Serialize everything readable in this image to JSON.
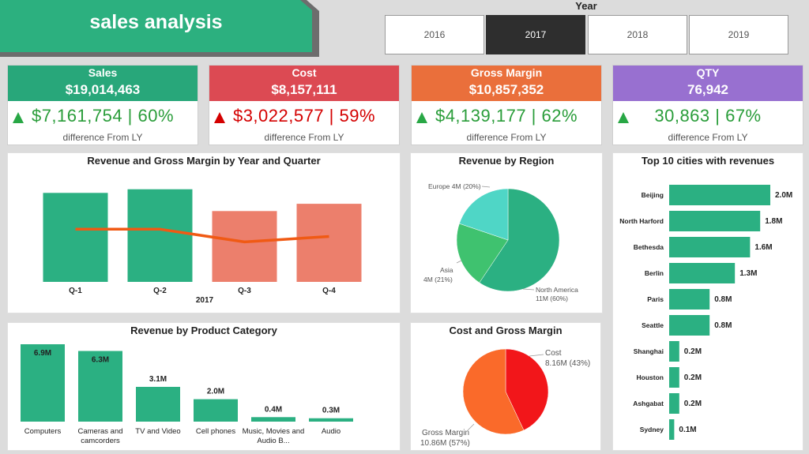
{
  "header": {
    "title": "sales analysis",
    "colors": {
      "banner": "#2cb07f",
      "banner_shadow": "#6d6d6d"
    }
  },
  "year_slicer": {
    "label": "Year",
    "options": [
      "2016",
      "2017",
      "2018",
      "2019"
    ],
    "selected": "2017"
  },
  "kpis": [
    {
      "label": "Sales",
      "value": "$19,014,463",
      "diff": "$7,161,754 | 60%",
      "sub": "difference From LY",
      "head_color": "#28a77a",
      "diff_color": "#2a9d3a",
      "arrow": "up-green"
    },
    {
      "label": "Cost",
      "value": "$8,157,111",
      "diff": "$3,022,577 | 59%",
      "sub": "difference From LY",
      "head_color": "#dc4a53",
      "diff_color": "#d40000",
      "arrow": "up-red"
    },
    {
      "label": "Gross Margin",
      "value": "$10,857,352",
      "diff": "$4,139,177 | 62%",
      "sub": "difference From LY",
      "head_color": "#ea6f3b",
      "diff_color": "#2a9d3a",
      "arrow": "up-green"
    },
    {
      "label": "QTY",
      "value": "76,942",
      "diff": "30,863 | 67%",
      "sub": "difference From LY",
      "head_color": "#9870d0",
      "diff_color": "#2a9d3a",
      "arrow": "up-green"
    }
  ],
  "panels": {
    "rev_gm": {
      "title": "Revenue and Gross Margin by Year and Quarter",
      "year_label": "2017"
    },
    "rev_region": {
      "title": "Revenue by Region"
    },
    "top_cities": {
      "title": "Top 10 cities with revenues"
    },
    "rev_category": {
      "title": "Revenue by Product Category"
    },
    "cost_gm": {
      "title": "Cost and Gross Margin"
    }
  },
  "chart_data": [
    {
      "id": "rev_gm",
      "type": "bar",
      "title": "Revenue and Gross Margin by Year and Quarter",
      "categories": [
        "Q-1",
        "Q-2",
        "Q-3",
        "Q-4"
      ],
      "series": [
        {
          "values": [
            4.9,
            5.1,
            3.9,
            4.3
          ],
          "colors": [
            "#2bb082",
            "#2bb082",
            "#ec7f6c",
            "#ec7f6c"
          ]
        },
        {
          "values": [
            2.9,
            2.9,
            2.2,
            2.5
          ],
          "line_color": "#f05a14",
          "style": "line"
        }
      ],
      "ylim": [
        0,
        6
      ]
    },
    {
      "id": "rev_region",
      "type": "pie",
      "title": "Revenue by Region",
      "slices": [
        {
          "label": "North America",
          "value_label": "11M (60%)",
          "value": 60,
          "color": "#2bb082"
        },
        {
          "label": "Asia",
          "value_label": "4M (21%)",
          "value": 21,
          "color": "#3fc26f"
        },
        {
          "label": "Europe",
          "value_label": "4M (20%)",
          "value": 20,
          "color": "#4fd6c6"
        }
      ]
    },
    {
      "id": "top_cities",
      "type": "bar",
      "title": "Top 10 cities with revenues",
      "categories": [
        "Beijing",
        "North Harford",
        "Bethesda",
        "Berlin",
        "Paris",
        "Seattle",
        "Shanghai",
        "Houston",
        "Ashgabat",
        "Sydney"
      ],
      "values": [
        2.0,
        1.8,
        1.6,
        1.3,
        0.8,
        0.8,
        0.2,
        0.2,
        0.2,
        0.1
      ],
      "labels": [
        "2.0M",
        "1.8M",
        "1.6M",
        "1.3M",
        "0.8M",
        "0.8M",
        "0.2M",
        "0.2M",
        "0.2M",
        "0.1M"
      ],
      "color": "#2bb082"
    },
    {
      "id": "rev_category",
      "type": "bar",
      "title": "Revenue by Product Category",
      "categories": [
        "Computers",
        "Cameras and camcorders",
        "TV and Video",
        "Cell phones",
        "Music, Movies and Audio B...",
        "Audio"
      ],
      "values": [
        6.9,
        6.3,
        3.1,
        2.0,
        0.4,
        0.3
      ],
      "labels": [
        "6.9M",
        "6.3M",
        "3.1M",
        "2.0M",
        "0.4M",
        "0.3M"
      ],
      "color": "#2bb082"
    },
    {
      "id": "cost_gm",
      "type": "pie",
      "title": "Cost and Gross Margin",
      "slices": [
        {
          "label": "Cost",
          "value_label": "8.16M (43%)",
          "value": 43,
          "color": "#f2161a"
        },
        {
          "label": "Gross Margin",
          "value_label": "10.86M (57%)",
          "value": 57,
          "color": "#fa6a2a"
        }
      ]
    }
  ]
}
